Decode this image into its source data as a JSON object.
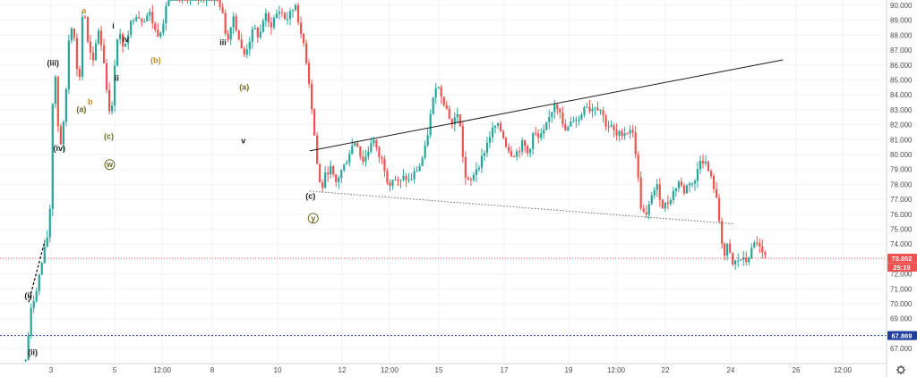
{
  "chart_data": {
    "type": "candlestick",
    "y_unit": "price",
    "ylim": [
      66.0,
      90.6
    ],
    "y_ticks": [
      "67.000",
      "68.000",
      "69.000",
      "70.000",
      "71.000",
      "72.000",
      "73.000",
      "74.000",
      "75.000",
      "76.000",
      "77.000",
      "78.000",
      "79.000",
      "80.000",
      "81.000",
      "82.000",
      "83.000",
      "84.000",
      "85.000",
      "86.000",
      "87.000",
      "88.000",
      "89.000",
      "90.000"
    ],
    "x_ticks": [
      "3",
      "5",
      "12:00",
      "8",
      "10",
      "12",
      "12:00",
      "15",
      "17",
      "19",
      "12:00",
      "22",
      "24",
      "26",
      "12:00"
    ],
    "price_tags": [
      {
        "label": "73.052",
        "value": 73.052,
        "color": "#ef5350"
      },
      {
        "label": "25:19",
        "value": 72.45,
        "color": "#ef5350"
      },
      {
        "label": "67.869",
        "value": 67.869,
        "color": "#1f3f9e"
      }
    ],
    "levels": [
      {
        "value": 73.052,
        "color": "#ef5350",
        "style": "dotted"
      },
      {
        "value": 67.869,
        "color": "#1f3f9e",
        "style": "dashed"
      }
    ],
    "trendlines": [
      {
        "from": {
          "bar": 0.349,
          "price": 80.25
        },
        "to": {
          "bar": 0.884,
          "price": 86.35
        },
        "color": "#1c1c1c",
        "style": "solid"
      },
      {
        "from": {
          "bar": 0.349,
          "price": 77.55
        },
        "to": {
          "bar": 0.829,
          "price": 75.35
        },
        "color": "#6a6a6a",
        "style": "dotted"
      }
    ],
    "wave_labels": [
      {
        "text": "(iii)",
        "bar": 0.059,
        "price": 85.95,
        "color": "#1c1c1c"
      },
      {
        "text": "(iv)",
        "bar": 0.066,
        "price": 80.25,
        "color": "#1c1c1c"
      },
      {
        "text": "(i)",
        "bar": 0.031,
        "price": 70.35,
        "color": "#1c1c1c"
      },
      {
        "text": "(ii)",
        "bar": 0.036,
        "price": 66.55,
        "color": "#1c1c1c"
      },
      {
        "text": "(a)",
        "bar": 0.091,
        "price": 82.85,
        "color": "#6b6b1e"
      },
      {
        "text": "b",
        "bar": 0.101,
        "price": 83.35,
        "color": "#c8891e"
      },
      {
        "text": "(c)",
        "bar": 0.122,
        "price": 81.05,
        "color": "#6b6b1e"
      },
      {
        "text": "w",
        "bar": 0.123,
        "price": 79.15,
        "color": "#6b6b1e",
        "circled": true
      },
      {
        "text": "a",
        "bar": 0.094,
        "price": 89.45,
        "color": "#c8891e"
      },
      {
        "text": "iii",
        "bar": 0.136,
        "price": 90.35,
        "color": "#1c1c1c"
      },
      {
        "text": "i",
        "bar": 0.127,
        "price": 88.45,
        "color": "#1c1c1c"
      },
      {
        "text": "iv",
        "bar": 0.141,
        "price": 87.55,
        "color": "#1c1c1c"
      },
      {
        "text": "ii",
        "bar": 0.131,
        "price": 84.95,
        "color": "#1c1c1c"
      },
      {
        "text": "(b)",
        "bar": 0.175,
        "price": 86.15,
        "color": "#c8891e"
      },
      {
        "text": "iii",
        "bar": 0.251,
        "price": 87.35,
        "color": "#1c1c1c"
      },
      {
        "text": "v",
        "bar": 0.274,
        "price": 80.75,
        "color": "#1c1c1c"
      },
      {
        "text": "(a)",
        "bar": 0.275,
        "price": 84.35,
        "color": "#6b6b1e"
      },
      {
        "text": "(c)",
        "bar": 0.35,
        "price": 77.05,
        "color": "#1c1c1c"
      },
      {
        "text": "y",
        "bar": 0.353,
        "price": 75.55,
        "color": "#6b6b1e",
        "circled": true
      }
    ],
    "candle_colors": {
      "up": "#26a69a",
      "down": "#ef5350"
    },
    "grid": true,
    "legend": "none",
    "settings_icon": "gear-icon"
  }
}
